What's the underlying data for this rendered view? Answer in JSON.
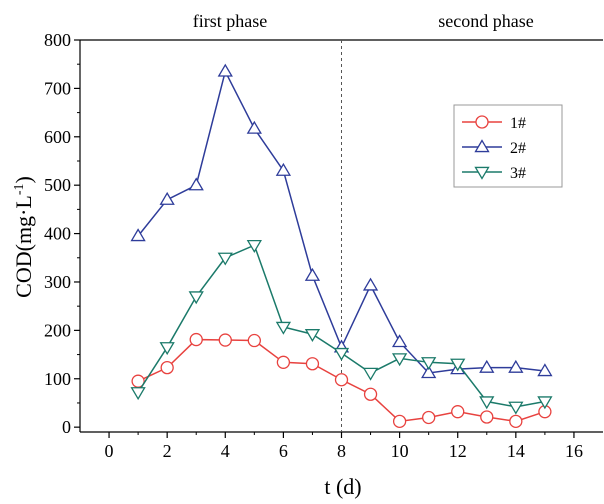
{
  "chart_data": {
    "type": "line",
    "xlabel": "t (d)",
    "ylabel_main": "COD(mg·L",
    "ylabel_sup": "-1",
    "ylabel_end": ")",
    "xlim": [
      -1,
      17
    ],
    "ylim": [
      -10,
      800
    ],
    "xticks": [
      0,
      2,
      4,
      6,
      8,
      10,
      12,
      14,
      16
    ],
    "yticks": [
      0,
      100,
      200,
      300,
      400,
      500,
      600,
      700,
      800
    ],
    "grid": false,
    "legend_position": "right",
    "divider_x": 8,
    "phase_labels": [
      "first phase",
      "second phase"
    ],
    "x": [
      1,
      2,
      3,
      4,
      5,
      6,
      7,
      8,
      9,
      10,
      11,
      12,
      13,
      14,
      15
    ],
    "series": [
      {
        "name": "1#",
        "marker": "circle",
        "color": "#e8423f",
        "values": [
          95,
          123,
          181,
          180,
          179,
          134,
          131,
          98,
          68,
          12,
          20,
          32,
          21,
          12,
          32
        ]
      },
      {
        "name": "2#",
        "marker": "triangle-up",
        "color": "#2e3c9a",
        "values": [
          395,
          470,
          500,
          735,
          617,
          530,
          313,
          165,
          293,
          176,
          112,
          120,
          123,
          123,
          116
        ]
      },
      {
        "name": "3#",
        "marker": "triangle-down",
        "color": "#1b7a6a",
        "values": [
          72,
          165,
          270,
          350,
          376,
          207,
          192,
          153,
          112,
          142,
          134,
          131,
          53,
          42,
          53
        ]
      }
    ]
  }
}
